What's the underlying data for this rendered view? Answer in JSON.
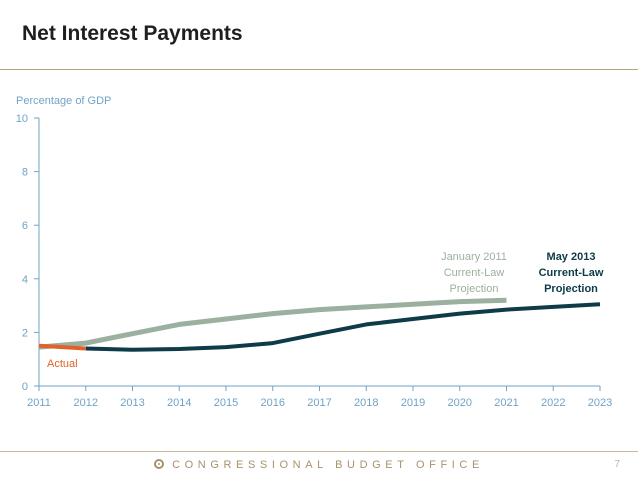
{
  "slide": {
    "title": "Net Interest Payments",
    "footer": "CONGRESSIONAL BUDGET OFFICE",
    "page_number": "7"
  },
  "colors": {
    "actual": "#e0622a",
    "jan2011": "#9bb09f",
    "may2013": "#0d3b47",
    "axis": "#6fa3c7",
    "accent_rule": "#b8a57a"
  },
  "chart_data": {
    "type": "line",
    "title": "",
    "xlabel": "",
    "ylabel": "Percentage of GDP",
    "xlim": [
      2011,
      2023
    ],
    "ylim": [
      0,
      10
    ],
    "x_ticks": [
      "2011",
      "2012",
      "2013",
      "2014",
      "2015",
      "2016",
      "2017",
      "2018",
      "2019",
      "2020",
      "2021",
      "2022",
      "2023"
    ],
    "y_ticks": [
      "0",
      "2",
      "4",
      "6",
      "8",
      "10"
    ],
    "grid": false,
    "series": [
      {
        "key": "actual",
        "name": "Actual",
        "x": [
          2011,
          2012
        ],
        "y": [
          1.5,
          1.4
        ]
      },
      {
        "key": "jan2011",
        "name_lines": [
          "January 2011",
          "Current-Law",
          "Projection"
        ],
        "x": [
          2011,
          2012,
          2013,
          2014,
          2015,
          2016,
          2017,
          2018,
          2019,
          2020,
          2021
        ],
        "y": [
          1.45,
          1.6,
          1.95,
          2.3,
          2.5,
          2.7,
          2.85,
          2.95,
          3.05,
          3.15,
          3.2
        ]
      },
      {
        "key": "may2013",
        "name_lines": [
          "May 2013",
          "Current-Law",
          "Projection"
        ],
        "x": [
          2012,
          2013,
          2014,
          2015,
          2016,
          2017,
          2018,
          2019,
          2020,
          2021,
          2022,
          2023
        ],
        "y": [
          1.4,
          1.35,
          1.38,
          1.45,
          1.6,
          1.95,
          2.3,
          2.5,
          2.7,
          2.85,
          2.95,
          3.05
        ]
      }
    ]
  }
}
